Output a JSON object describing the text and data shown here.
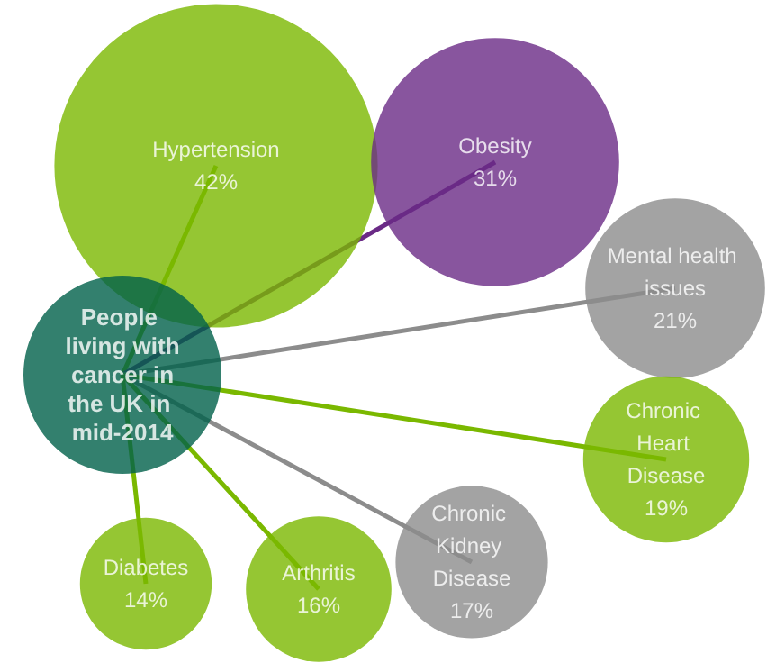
{
  "chart_data": {
    "type": "other",
    "title": "People living with cancer in the UK in mid-2014",
    "categories": [
      "Hypertension",
      "Obesity",
      "Mental health issues",
      "Chronic Heart Disease",
      "Chronic Kidney Disease",
      "Arthritis",
      "Diabetes"
    ],
    "values": [
      42,
      31,
      21,
      19,
      17,
      16,
      14
    ],
    "value_labels": [
      "42%",
      "31%",
      "21%",
      "19%",
      "17%",
      "16%",
      "14%"
    ],
    "colors": [
      "#7ab800",
      "#6a2a86",
      "#8c8c8c",
      "#7ab800",
      "#8c8c8c",
      "#7ab800",
      "#7ab800"
    ]
  }
}
